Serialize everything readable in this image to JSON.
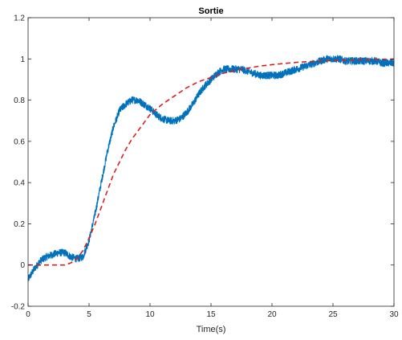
{
  "chart_data": {
    "type": "line",
    "title": "Sortie",
    "xlabel": "Time(s)",
    "ylabel": "",
    "xlim": [
      0,
      30
    ],
    "ylim": [
      -0.2,
      1.2
    ],
    "xticks": [
      0,
      5,
      10,
      15,
      20,
      25,
      30
    ],
    "yticks": [
      -0.2,
      0,
      0.2,
      0.4,
      0.6,
      0.8,
      1,
      1.2
    ],
    "grid": false,
    "legend": "none",
    "series": [
      {
        "style": "solid-noisy",
        "color": "#0072bd",
        "x": [
          0,
          0.5,
          1,
          1.5,
          2,
          2.5,
          3,
          3.5,
          4,
          4.5,
          5,
          5.5,
          6,
          6.5,
          7,
          7.5,
          8,
          8.5,
          9,
          9.5,
          10,
          10.5,
          11,
          11.5,
          12,
          12.5,
          13,
          13.5,
          14,
          14.5,
          15,
          15.5,
          16,
          16.5,
          17,
          17.5,
          18,
          18.5,
          19,
          19.5,
          20,
          20.5,
          21,
          21.5,
          22,
          22.5,
          23,
          23.5,
          24,
          24.5,
          25,
          25.5,
          26,
          26.5,
          27,
          27.5,
          28,
          28.5,
          29,
          29.5,
          30
        ],
        "y": [
          -0.07,
          -0.02,
          0.02,
          0.04,
          0.05,
          0.06,
          0.06,
          0.04,
          0.03,
          0.04,
          0.12,
          0.25,
          0.4,
          0.55,
          0.67,
          0.75,
          0.78,
          0.8,
          0.8,
          0.78,
          0.76,
          0.73,
          0.71,
          0.7,
          0.7,
          0.71,
          0.74,
          0.78,
          0.83,
          0.87,
          0.9,
          0.93,
          0.95,
          0.95,
          0.95,
          0.95,
          0.94,
          0.93,
          0.92,
          0.92,
          0.92,
          0.92,
          0.93,
          0.94,
          0.95,
          0.96,
          0.97,
          0.98,
          0.99,
          1.0,
          1.0,
          1.0,
          0.99,
          0.99,
          0.99,
          0.99,
          0.99,
          0.99,
          0.98,
          0.98,
          0.98
        ]
      },
      {
        "style": "dashed",
        "color": "#d92020",
        "x": [
          0,
          1,
          2,
          3,
          3.5,
          4,
          4.5,
          5,
          5.5,
          6,
          6.5,
          7,
          7.5,
          8,
          8.5,
          9,
          9.5,
          10,
          11,
          12,
          13,
          14,
          15,
          16,
          17,
          18,
          19,
          20,
          21,
          22,
          23,
          24,
          25,
          26,
          27,
          28,
          29,
          30
        ],
        "y": [
          0,
          0,
          0,
          0,
          0.01,
          0.03,
          0.07,
          0.13,
          0.2,
          0.28,
          0.36,
          0.44,
          0.5,
          0.56,
          0.61,
          0.65,
          0.69,
          0.73,
          0.78,
          0.82,
          0.86,
          0.89,
          0.91,
          0.93,
          0.945,
          0.955,
          0.965,
          0.972,
          0.978,
          0.983,
          0.987,
          0.99,
          0.992,
          0.994,
          0.996,
          0.997,
          0.998,
          0.999
        ]
      }
    ]
  }
}
